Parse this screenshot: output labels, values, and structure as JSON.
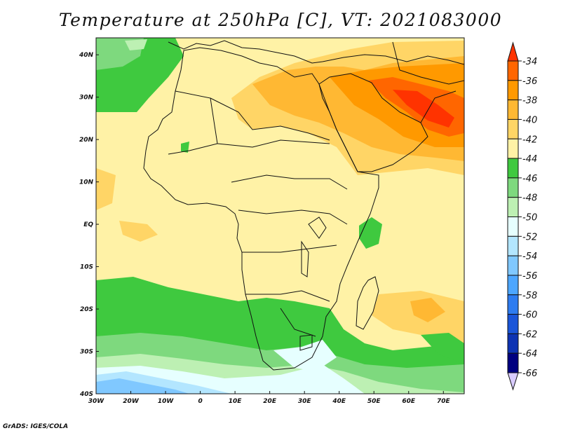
{
  "title": "Temperature at 250hPa [C], VT: 2021083000",
  "credit": "GrADS: IGES/COLA",
  "map": {
    "lon_range": [
      -30,
      76
    ],
    "lat_range": [
      -40,
      44
    ],
    "x_ticks": [
      {
        "lon": -30,
        "label": "30W"
      },
      {
        "lon": -20,
        "label": "20W"
      },
      {
        "lon": -10,
        "label": "10W"
      },
      {
        "lon": 0,
        "label": "0"
      },
      {
        "lon": 10,
        "label": "10E"
      },
      {
        "lon": 20,
        "label": "20E"
      },
      {
        "lon": 30,
        "label": "30E"
      },
      {
        "lon": 40,
        "label": "40E"
      },
      {
        "lon": 50,
        "label": "50E"
      },
      {
        "lon": 60,
        "label": "60E"
      },
      {
        "lon": 70,
        "label": "70E"
      }
    ],
    "y_ticks": [
      {
        "lat": 40,
        "label": "40N"
      },
      {
        "lat": 30,
        "label": "30N"
      },
      {
        "lat": 20,
        "label": "20N"
      },
      {
        "lat": 10,
        "label": "10N"
      },
      {
        "lat": 0,
        "label": "EQ"
      },
      {
        "lat": -10,
        "label": "10S"
      },
      {
        "lat": -20,
        "label": "20S"
      },
      {
        "lat": -30,
        "label": "30S"
      },
      {
        "lat": -40,
        "label": "40S"
      }
    ]
  },
  "colorbar": {
    "levels": [
      "-34",
      "-36",
      "-38",
      "-40",
      "-42",
      "-44",
      "-46",
      "-48",
      "-50",
      "-52",
      "-54",
      "-56",
      "-58",
      "-60",
      "-62",
      "-64",
      "-66"
    ],
    "colors_top_to_bottom": [
      "#ff3300",
      "#ff6600",
      "#ff9900",
      "#ffb833",
      "#ffd566",
      "#fff2a6",
      "#3fc93f",
      "#7ed97e",
      "#bdf0b3",
      "#e6ffff",
      "#b3e6ff",
      "#80c8ff",
      "#4da6ff",
      "#2e7cf0",
      "#1a55d9",
      "#0d33b3",
      "#000080",
      "#d9ccff"
    ]
  }
}
